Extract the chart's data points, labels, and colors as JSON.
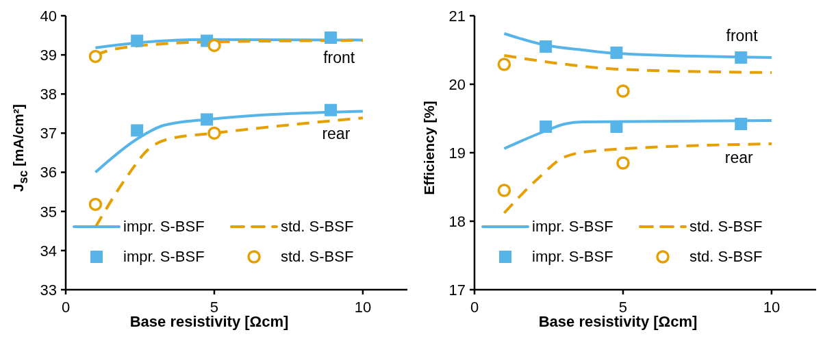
{
  "chart_data": [
    {
      "type": "line",
      "xlabel": "Base resistivity [Ωcm]",
      "ylabel": "J$_{sc}$ [mA/cm²]",
      "xlim": [
        0,
        11.5
      ],
      "xticks": [
        0,
        5,
        10
      ],
      "ylim": [
        33,
        40
      ],
      "yticks": [
        33,
        34,
        35,
        36,
        37,
        38,
        39,
        40
      ],
      "legend": "bottom",
      "annotations": [
        {
          "text": "front",
          "x": 9.2,
          "y": 39.37
        },
        {
          "text": "rear",
          "x": 9.1,
          "y": 37.35
        }
      ],
      "series": [
        {
          "name": "impr. S-BSF",
          "color": "#56b4e9",
          "line_style": "solid",
          "x": [
            1,
            2.4,
            4.75,
            10
          ],
          "values": [
            39.18,
            39.31,
            39.39,
            39.38
          ]
        },
        {
          "name": "std. S-BSF",
          "color": "#e69f00",
          "line_style": "dashed",
          "x": [
            1,
            1.8,
            4.75,
            10
          ],
          "values": [
            39.0,
            39.17,
            39.33,
            39.37
          ]
        },
        {
          "name": "impr. S-BSF",
          "type": "scatter",
          "color": "#56b4e9",
          "marker": "square",
          "x": [
            2.4,
            4.75,
            8.92,
            2.4,
            4.75,
            8.92
          ],
          "values": [
            39.36,
            39.36,
            39.44,
            37.07,
            37.35,
            37.59
          ]
        },
        {
          "name": "std. S-BSF",
          "type": "scatter",
          "color": "#e69f00",
          "marker": "circle",
          "x": [
            1,
            5,
            1,
            5
          ],
          "values": [
            38.96,
            39.24,
            35.18,
            37.0
          ]
        },
        {
          "color": "#56b4e9",
          "line_style": "solid",
          "x": [
            1,
            2.4,
            3.3,
            4.75,
            10
          ],
          "values": [
            36.0,
            36.85,
            37.2,
            37.35,
            37.56
          ]
        },
        {
          "color": "#e69f00",
          "line_style": "dashed",
          "x": [
            1,
            2.08,
            2.77,
            3.46,
            5,
            10
          ],
          "values": [
            34.6,
            35.91,
            36.58,
            36.85,
            37.0,
            37.39
          ]
        }
      ]
    },
    {
      "type": "line",
      "xlabel": "Base resistivity [Ωcm]",
      "ylabel": "Efficiency [%]",
      "xlim": [
        0,
        11.5
      ],
      "xticks": [
        0,
        5,
        10
      ],
      "ylim": [
        17,
        21
      ],
      "yticks": [
        17,
        18,
        19,
        20,
        21
      ],
      "legend": "bottom",
      "annotations": [
        {
          "text": "front",
          "x": 9.0,
          "y": 20.39
        },
        {
          "text": "rear",
          "x": 8.9,
          "y": 19.12
        }
      ],
      "series": [
        {
          "name": "impr. S-BSF",
          "color": "#56b4e9",
          "line_style": "solid",
          "x": [
            1,
            2.4,
            3.65,
            4.78,
            10
          ],
          "values": [
            20.74,
            20.57,
            20.5,
            20.45,
            20.39
          ]
        },
        {
          "name": "std. S-BSF",
          "color": "#e69f00",
          "line_style": "dashed",
          "x": [
            1,
            2.89,
            4.8,
            10
          ],
          "values": [
            20.42,
            20.3,
            20.22,
            20.17
          ]
        },
        {
          "name": "impr. S-BSF",
          "type": "scatter",
          "color": "#56b4e9",
          "marker": "square",
          "x": [
            2.4,
            4.78,
            8.97,
            2.4,
            4.78,
            8.97
          ],
          "values": [
            20.55,
            20.46,
            20.39,
            19.38,
            19.38,
            19.42
          ]
        },
        {
          "name": "std. S-BSF",
          "type": "scatter",
          "color": "#e69f00",
          "marker": "circle",
          "x": [
            1,
            5,
            1,
            5
          ],
          "values": [
            20.29,
            19.9,
            18.45,
            18.85
          ]
        },
        {
          "color": "#56b4e9",
          "line_style": "solid",
          "x": [
            1,
            2.4,
            3.04,
            3.65,
            10
          ],
          "values": [
            19.06,
            19.32,
            19.42,
            19.45,
            19.47
          ]
        },
        {
          "color": "#e69f00",
          "line_style": "dashed",
          "x": [
            1,
            2.13,
            3.04,
            4.1,
            10
          ],
          "values": [
            18.12,
            18.62,
            18.94,
            19.03,
            19.13
          ]
        }
      ]
    }
  ]
}
